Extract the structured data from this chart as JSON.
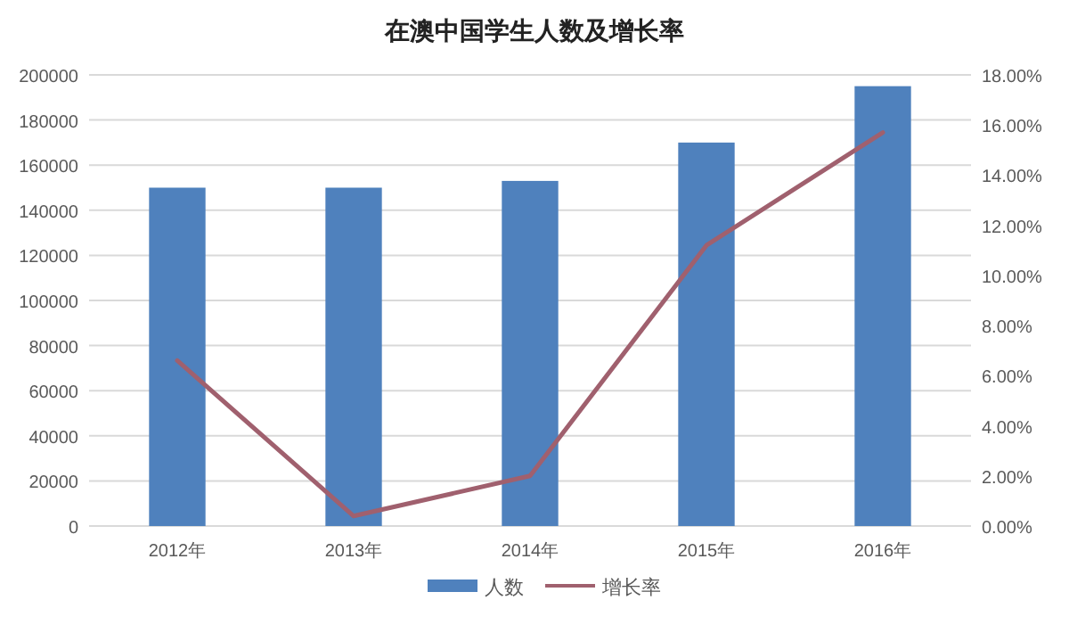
{
  "chart_data": {
    "type": "bar",
    "title": "在澳中国学生人数及增长率",
    "categories": [
      "2012年",
      "2013年",
      "2014年",
      "2015年",
      "2016年"
    ],
    "series": [
      {
        "name": "人数",
        "color": "#4f81bd",
        "values": [
          150000,
          150000,
          153000,
          170000,
          195000
        ]
      },
      {
        "name": "增长率",
        "type": "line",
        "axis": "y2",
        "color": "#a0606e",
        "values": [
          6.6,
          0.4,
          2.0,
          11.2,
          15.7
        ]
      }
    ],
    "ylim": [
      0,
      200000
    ],
    "yticks": [
      0,
      20000,
      40000,
      60000,
      80000,
      100000,
      120000,
      140000,
      160000,
      180000,
      200000
    ],
    "y2lim": [
      0,
      18
    ],
    "y2ticks": [
      {
        "value": 0,
        "label": "0.00%"
      },
      {
        "value": 2,
        "label": "2.00%"
      },
      {
        "value": 4,
        "label": "4.00%"
      },
      {
        "value": 6,
        "label": "6.00%"
      },
      {
        "value": 8,
        "label": "8.00%"
      },
      {
        "value": 10,
        "label": "10.00%"
      },
      {
        "value": 12,
        "label": "12.00%"
      },
      {
        "value": 14,
        "label": "14.00%"
      },
      {
        "value": 16,
        "label": "16.00%"
      },
      {
        "value": 18,
        "label": "18.00%"
      }
    ],
    "grid": "y",
    "legend": "bottom",
    "marker": "none"
  }
}
